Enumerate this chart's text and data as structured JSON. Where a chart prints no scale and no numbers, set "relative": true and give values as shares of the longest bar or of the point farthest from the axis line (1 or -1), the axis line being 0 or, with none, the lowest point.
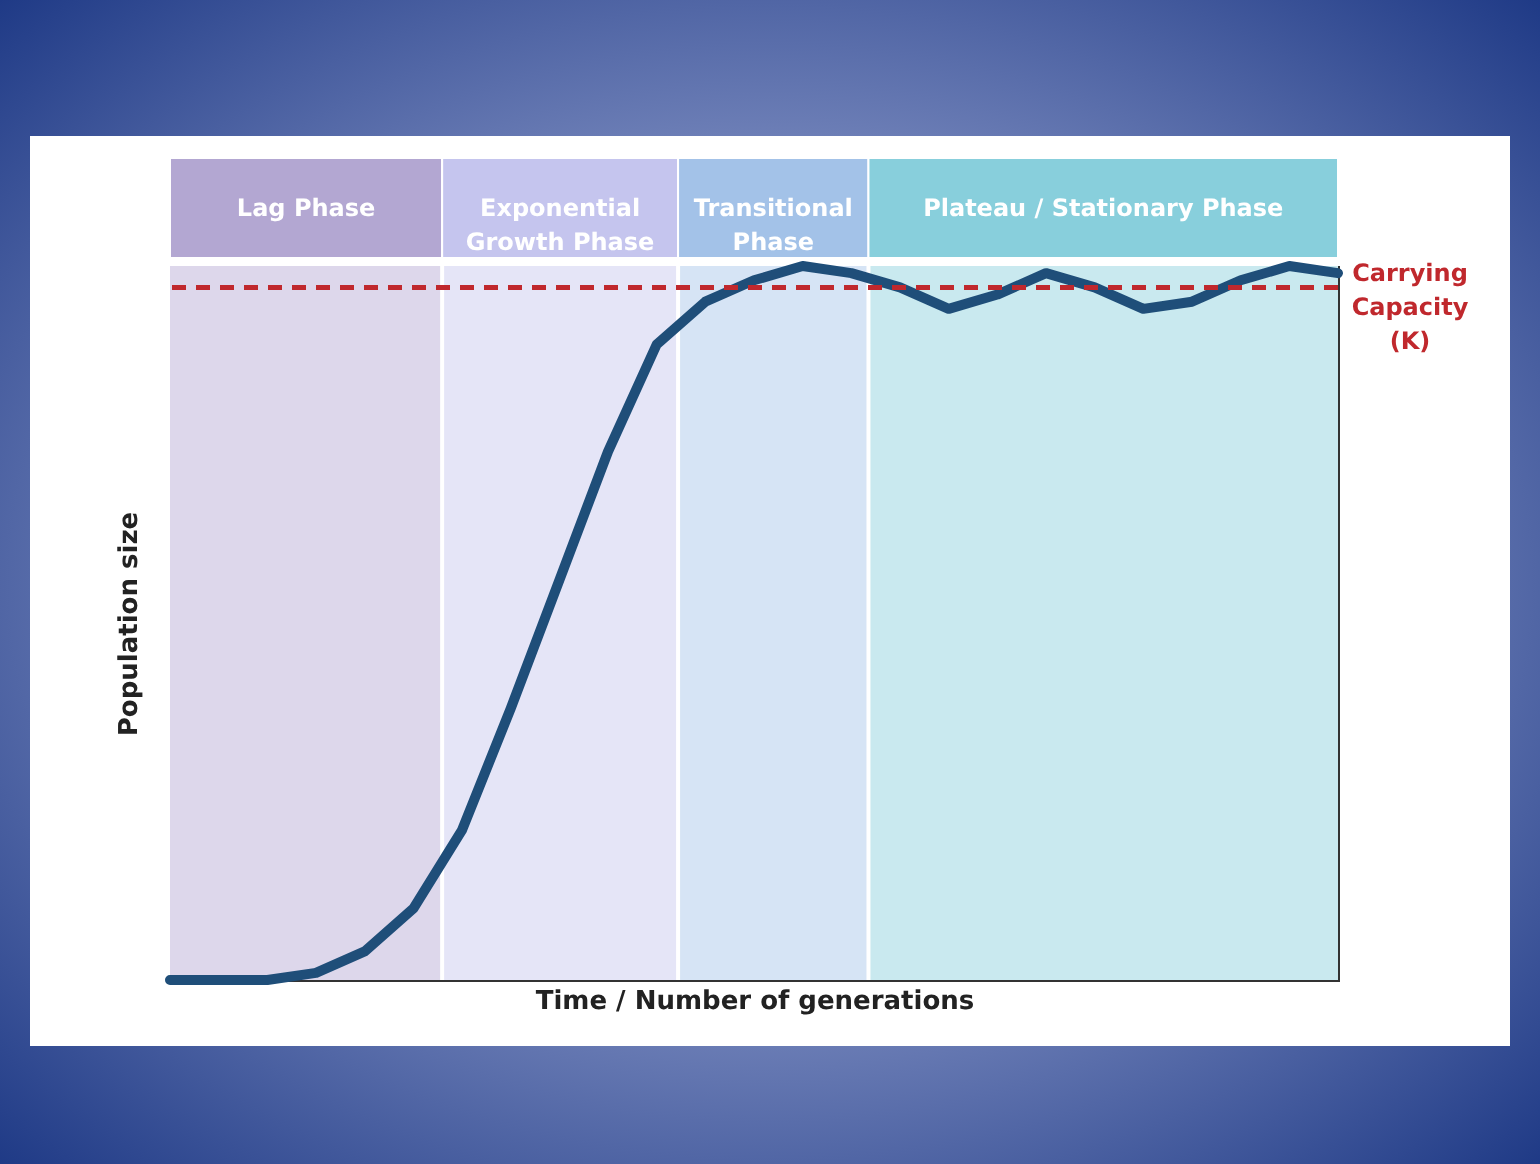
{
  "chart_data": {
    "type": "line",
    "relative": true,
    "xlabel": "Time / Number of generations",
    "ylabel": "Population size",
    "categories": [
      null,
      null,
      null,
      null,
      null,
      null,
      null,
      null,
      null,
      null,
      null,
      null,
      null,
      null,
      null,
      null,
      null,
      null,
      null,
      null,
      null,
      null,
      null,
      null,
      null
    ],
    "series": [
      {
        "color": "#1f4e79",
        "values": [
          0,
          0,
          0,
          0.01,
          0.04,
          0.1,
          0.21,
          0.38,
          0.56,
          0.74,
          0.89,
          0.95,
          0.98,
          1.0,
          0.99,
          0.97,
          0.94,
          0.96,
          0.99,
          0.97,
          0.94,
          0.95,
          0.98,
          1.0,
          0.99
        ]
      }
    ],
    "annotations": [
      "Lag Phase",
      "Exponential Growth Phase",
      "Transitional Phase",
      "Plateau / Stationary Phase"
    ],
    "ref_lines": [
      {
        "axis": "y",
        "value": 0.97,
        "label": "Carrying Capacity (K)",
        "color": "#c0282d",
        "line_style": "dashed"
      }
    ]
  }
}
